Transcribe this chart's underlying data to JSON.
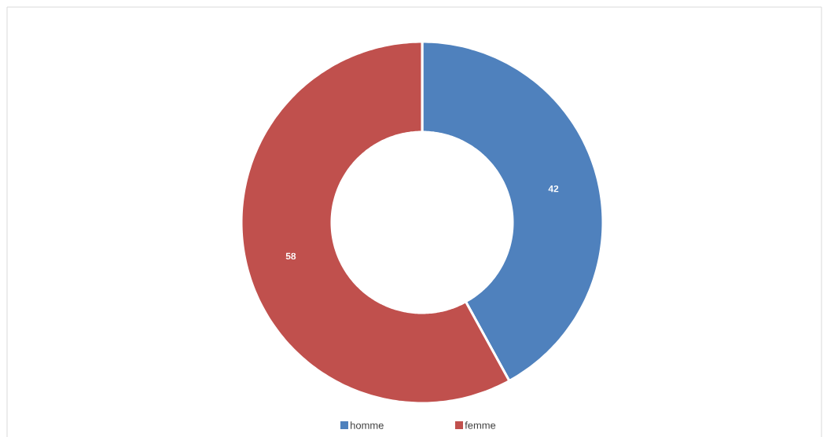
{
  "chart_data": {
    "type": "donut",
    "categories": [
      "homme",
      "femme"
    ],
    "values": [
      42,
      58
    ],
    "colors": [
      "#4f81bd",
      "#c0504d"
    ],
    "data_labels": true,
    "legend": "bottom"
  }
}
